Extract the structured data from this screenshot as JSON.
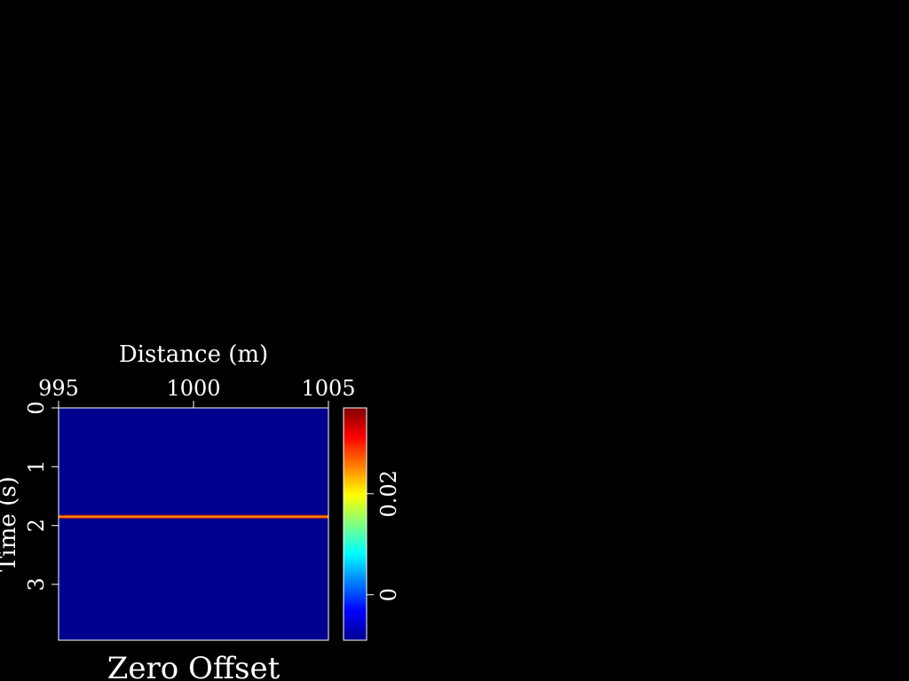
{
  "chart_data": {
    "type": "heatmap",
    "title": "Zero Offset",
    "xlabel": "Distance (m)",
    "ylabel": "Time (s)",
    "xlim": [
      995,
      1005
    ],
    "ylim": [
      0,
      3.95
    ],
    "y_inverted": true,
    "x_ticks": [
      995,
      1000,
      1005
    ],
    "x_tick_labels": [
      "995",
      "1000",
      "1005"
    ],
    "y_ticks": [
      0,
      1,
      2,
      3
    ],
    "y_tick_labels": [
      "0",
      "1",
      "2",
      "3"
    ],
    "x_axis_position": "top",
    "background_value": 0,
    "events": [
      {
        "time": 1.85,
        "value": 0.035
      }
    ],
    "colorbar": {
      "colormap": "jet",
      "range": [
        -0.009,
        0.037
      ],
      "ticks": [
        0,
        0.02
      ],
      "tick_labels": [
        "0",
        "0.02"
      ]
    },
    "grid": false,
    "legend": "none"
  },
  "colors": {
    "background": "#000000",
    "field": "#00008f",
    "event_core": "#ff8c00",
    "event_edge": "#cc2200",
    "axis": "#ffffff"
  }
}
